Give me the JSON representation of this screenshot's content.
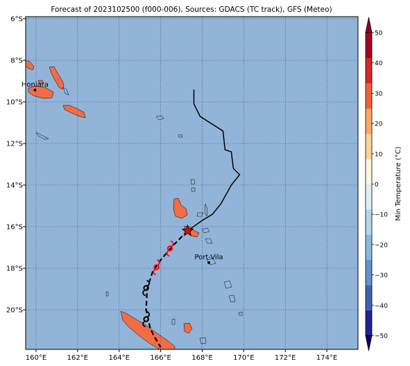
{
  "title": "Forecast of 2023102500 (f000-006), Sources: GDACS (TC track), GFS (Meteo)",
  "map": {
    "lon_range": [
      159.5,
      175.5
    ],
    "lat_range": [
      -21.9,
      -5.9
    ],
    "lon_ticks": [
      {
        "value": 160,
        "label": "160°E"
      },
      {
        "value": 162,
        "label": "162°E"
      },
      {
        "value": 164,
        "label": "164°E"
      },
      {
        "value": 166,
        "label": "166°E"
      },
      {
        "value": 168,
        "label": "168°E"
      },
      {
        "value": 170,
        "label": "170°E"
      },
      {
        "value": 172,
        "label": "172°E"
      },
      {
        "value": 174,
        "label": "174°E"
      }
    ],
    "lat_ticks": [
      {
        "value": -6,
        "label": "6°S"
      },
      {
        "value": -8,
        "label": "8°S"
      },
      {
        "value": -10,
        "label": "10°S"
      },
      {
        "value": -12,
        "label": "12°S"
      },
      {
        "value": -14,
        "label": "14°S"
      },
      {
        "value": -16,
        "label": "16°S"
      },
      {
        "value": -18,
        "label": "18°S"
      },
      {
        "value": -20,
        "label": "20°S"
      }
    ],
    "ocean_color": "#92b4d9",
    "land_color": "#f26d46",
    "grid": "dotted"
  },
  "cities": [
    {
      "name": "Honiara",
      "lon": 159.95,
      "lat": -9.43
    },
    {
      "name": "Port-Vila",
      "lon": 168.32,
      "lat": -17.73
    }
  ],
  "track": {
    "past": [
      [
        167.6,
        -9.4
      ],
      [
        167.6,
        -10.1
      ],
      [
        167.9,
        -10.7
      ],
      [
        169.0,
        -11.4
      ],
      [
        169.1,
        -12.3
      ],
      [
        169.4,
        -12.4
      ],
      [
        169.5,
        -13.2
      ],
      [
        169.8,
        -13.5
      ],
      [
        169.4,
        -14.0
      ],
      [
        168.9,
        -14.9
      ],
      [
        168.5,
        -15.4
      ],
      [
        168.0,
        -15.7
      ],
      [
        167.3,
        -16.2
      ]
    ],
    "forecast": [
      [
        167.3,
        -16.2
      ],
      [
        167.1,
        -16.4
      ],
      [
        166.6,
        -16.9
      ],
      [
        166.0,
        -17.6
      ],
      [
        165.6,
        -18.2
      ],
      [
        165.35,
        -19.0
      ],
      [
        165.3,
        -20.0
      ],
      [
        165.5,
        -20.9
      ],
      [
        165.7,
        -21.3
      ],
      [
        166.0,
        -21.8
      ]
    ],
    "current_position": {
      "lon": 167.3,
      "lat": -16.2
    },
    "storm_symbols": [
      {
        "lon": 166.45,
        "lat": -17.05,
        "color": "#ff0000"
      },
      {
        "lon": 165.8,
        "lat": -17.95,
        "color": "#ff0000"
      },
      {
        "lon": 165.3,
        "lat": -18.95,
        "color": "#000000"
      },
      {
        "lon": 165.3,
        "lat": -20.45,
        "color": "#000000"
      }
    ]
  },
  "colorbar": {
    "label": "Min Temperature (°C)",
    "min": -50,
    "max": 50,
    "ticks": [
      "50",
      "40",
      "30",
      "20",
      "10",
      "0",
      "−10",
      "−20",
      "−30",
      "−40",
      "−50"
    ],
    "colors_bottom_to_top": [
      "#23238e",
      "#3f62ae",
      "#5f95c8",
      "#8ab8d9",
      "#b5d4e6",
      "#e0eef4",
      "#fff7df",
      "#fed495",
      "#fba864",
      "#f0603c",
      "#d42a2a",
      "#a60026"
    ],
    "extend_low_color": "#08006c",
    "extend_high_color": "#8a0026"
  }
}
